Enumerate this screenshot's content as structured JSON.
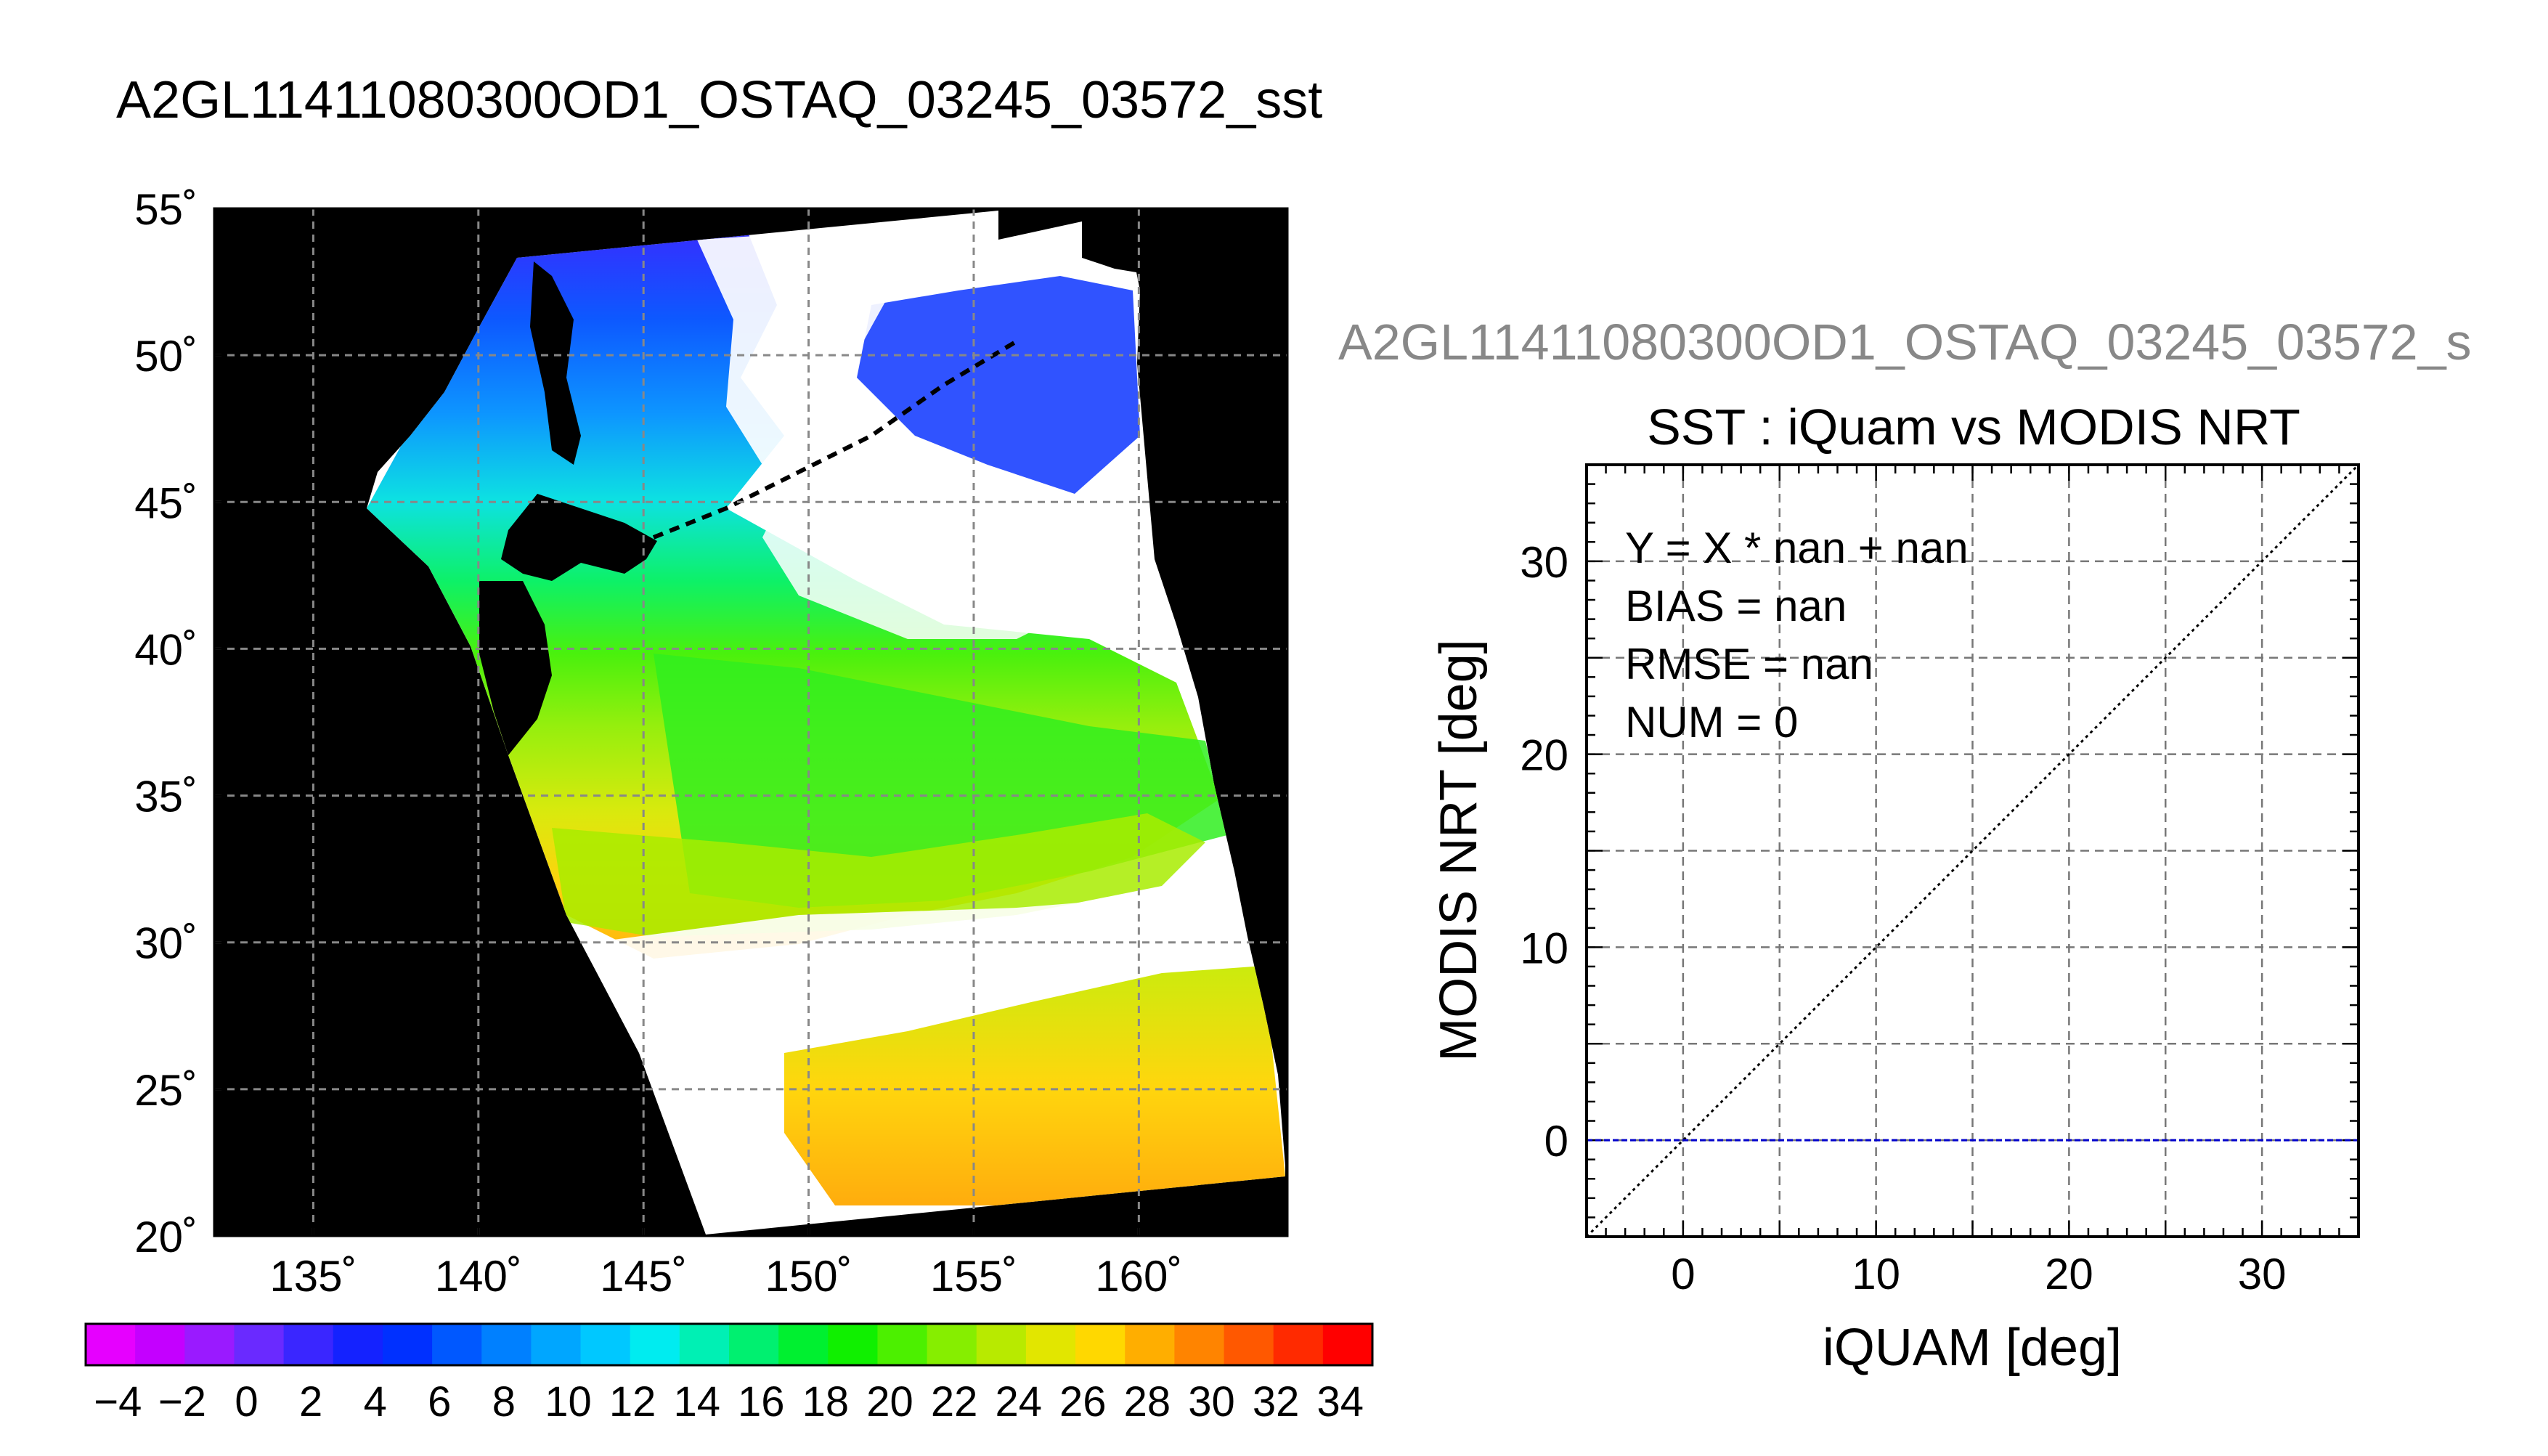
{
  "main_title": "A2GL11411080300OD1_OSTAQ_03245_03572_sst",
  "map": {
    "lat_labels": [
      "55˚",
      "50˚",
      "45˚",
      "40˚",
      "35˚",
      "30˚",
      "25˚",
      "20˚"
    ],
    "lon_labels": [
      "135˚",
      "140˚",
      "145˚",
      "150˚",
      "155˚",
      "160˚"
    ],
    "lat_values": [
      55,
      50,
      45,
      40,
      35,
      30,
      25,
      20
    ],
    "lon_values": [
      135,
      140,
      145,
      150,
      155,
      160
    ],
    "lat_range": [
      20,
      55
    ],
    "lon_range": [
      132,
      164.5
    ]
  },
  "colorbar": {
    "tick_labels": [
      "−4",
      "−2",
      "0",
      "2",
      "4",
      "6",
      "8",
      "10",
      "12",
      "14",
      "16",
      "18",
      "20",
      "22",
      "24",
      "26",
      "28",
      "30",
      "32",
      "34"
    ],
    "range": [
      -5,
      35
    ],
    "colors": [
      "#e600ff",
      "#c400ff",
      "#9a1aff",
      "#6a2aff",
      "#3a26ff",
      "#1422ff",
      "#0030ff",
      "#0058ff",
      "#0080ff",
      "#00a6ff",
      "#00c8ff",
      "#00ecf0",
      "#00f0b4",
      "#00f070",
      "#00f030",
      "#10f000",
      "#4cf000",
      "#86ee00",
      "#b8ea00",
      "#e2e600",
      "#ffd800",
      "#ffae00",
      "#ff8400",
      "#ff5800",
      "#ff2a00",
      "#ff0000"
    ]
  },
  "right_panel_title": "A2GL11411080300OD1_OSTAQ_03245_03572_s",
  "chart_data": {
    "type": "scatter",
    "title": "SST : iQuam vs MODIS NRT",
    "xlabel": "iQUAM [deg]",
    "ylabel": "MODIS NRT [deg]",
    "xlim": [
      -5,
      35
    ],
    "ylim": [
      -5,
      35
    ],
    "xticks": [
      0,
      10,
      20,
      30
    ],
    "yticks": [
      0,
      10,
      20,
      30
    ],
    "grid": true,
    "points": [],
    "reference_lines": [
      {
        "type": "diagonal",
        "style": "dotted",
        "color": "#000000"
      },
      {
        "type": "horizontal",
        "y": 0,
        "style": "dashed",
        "color": "#0000cc"
      }
    ],
    "stats": [
      "Y = X * nan + nan",
      "BIAS = nan",
      "RMSE = nan",
      "NUM = 0"
    ]
  }
}
